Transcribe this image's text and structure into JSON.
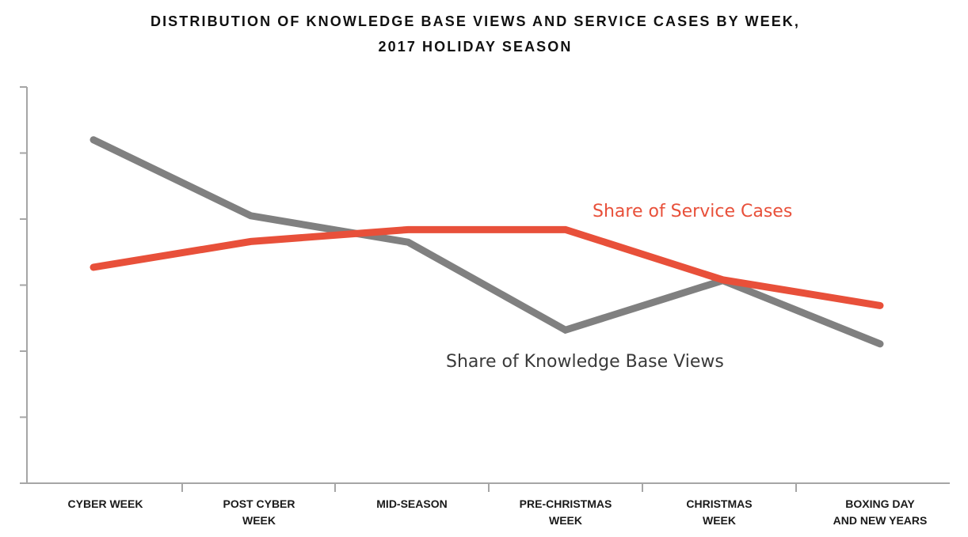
{
  "chart_data": {
    "type": "line",
    "title": "DISTRIBUTION OF KNOWLEDGE BASE VIEWS AND SERVICE CASES BY WEEK, 2017 HOLIDAY SEASON",
    "title_lines": [
      "DISTRIBUTION OF KNOWLEDGE BASE VIEWS AND SERVICE CASES BY WEEK,",
      "2017 HOLIDAY SEASON"
    ],
    "xlabel": "",
    "ylabel": "",
    "categories": [
      [
        "CYBER WEEK"
      ],
      [
        "POST CYBER",
        "WEEK"
      ],
      [
        "MID-SEASON"
      ],
      [
        "PRE-CHRISTMAS",
        "WEEK"
      ],
      [
        "CHRISTMAS",
        "WEEK"
      ],
      [
        "BOXING DAY",
        "AND NEW YEARS"
      ]
    ],
    "ylim": [
      0,
      6
    ],
    "y_ticks_count": 7,
    "y_tick_labels_shown": false,
    "y_units_note": "relative scale (axis ticks unlabeled)",
    "grid": false,
    "legend": "inline annotations",
    "series": [
      {
        "name": "Share of Knowledge Base Views",
        "color": "#808080",
        "values": [
          5.2,
          4.05,
          3.65,
          2.32,
          3.07,
          2.11
        ],
        "annotation": "Share of Knowledge Base Views",
        "annotation_position": "below-center"
      },
      {
        "name": "Share of Service Cases",
        "color": "#E8503A",
        "values": [
          3.27,
          3.66,
          3.84,
          3.84,
          3.08,
          2.69
        ],
        "annotation": "Share of Service Cases",
        "annotation_position": "above-right"
      }
    ]
  },
  "colors": {
    "axis": "#a6a6a6",
    "annotation_views": "#3a3a3a",
    "annotation_cases": "#E8503A"
  }
}
